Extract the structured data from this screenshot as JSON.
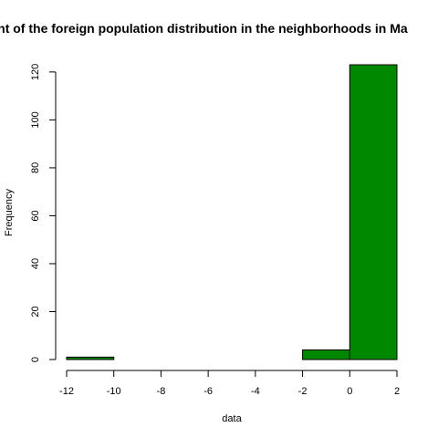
{
  "chart_data": {
    "type": "bar",
    "title": "ent of the foreign population distribution in the neighborhoods in Ma",
    "xlabel": "data",
    "ylabel": "Frequency",
    "bins": [
      {
        "start": -12,
        "end": -10,
        "count": 1
      },
      {
        "start": -10,
        "end": -8,
        "count": 0
      },
      {
        "start": -8,
        "end": -6,
        "count": 0
      },
      {
        "start": -6,
        "end": -4,
        "count": 0
      },
      {
        "start": -4,
        "end": -2,
        "count": 0
      },
      {
        "start": -2,
        "end": 0,
        "count": 4
      },
      {
        "start": 0,
        "end": 2,
        "count": 123
      }
    ],
    "xlim": [
      -12,
      2
    ],
    "ylim": [
      0,
      123
    ],
    "xticks": [
      -12,
      -10,
      -8,
      -6,
      -4,
      -2,
      0,
      2
    ],
    "yticks": [
      0,
      20,
      40,
      60,
      80,
      100,
      120
    ],
    "bar_color": "#008800",
    "grid": false
  }
}
